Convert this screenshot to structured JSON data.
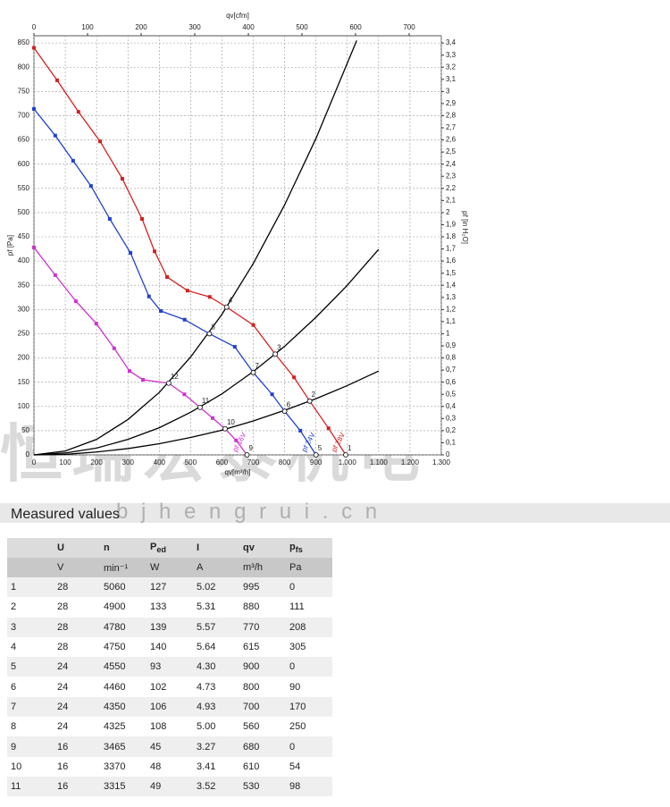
{
  "chart_data": {
    "type": "line",
    "x_label": "qv[m³/h]",
    "x2_label": "qv[cfm]",
    "y_label": "pf [Pa]",
    "y2_label": "pf [in H₂O]",
    "xlim": [
      0,
      1300
    ],
    "x2lim": [
      0,
      760
    ],
    "ylim": [
      0,
      865
    ],
    "y2lim": [
      0,
      3.46
    ],
    "grid": true,
    "xticks": [
      0,
      100,
      200,
      300,
      400,
      500,
      600,
      700,
      800,
      900,
      {
        "value": 1000,
        "label": "1.000"
      },
      {
        "value": 1100,
        "label": "1.100"
      },
      {
        "value": 1200,
        "label": "1.200"
      },
      {
        "value": 1300,
        "label": "1.300"
      }
    ],
    "x2ticks": [
      0,
      100,
      200,
      300,
      400,
      500,
      600,
      700
    ],
    "yticks": [
      0,
      50,
      100,
      150,
      200,
      250,
      300,
      350,
      400,
      450,
      500,
      550,
      600,
      650,
      700,
      750,
      800,
      850
    ],
    "y2ticks": [
      0,
      {
        "value": 0.1,
        "label": "0,1"
      },
      {
        "value": 0.2,
        "label": "0,2"
      },
      {
        "value": 0.3,
        "label": "0,3"
      },
      {
        "value": 0.4,
        "label": "0,4"
      },
      {
        "value": 0.5,
        "label": "0,5"
      },
      {
        "value": 0.6,
        "label": "0,6"
      },
      {
        "value": 0.7,
        "label": "0,7"
      },
      {
        "value": 0.8,
        "label": "0,8"
      },
      {
        "value": 0.9,
        "label": "0,9"
      },
      1,
      {
        "value": 1.1,
        "label": "1,1"
      },
      {
        "value": 1.2,
        "label": "1,2"
      },
      {
        "value": 1.3,
        "label": "1,3"
      },
      {
        "value": 1.4,
        "label": "1,4"
      },
      {
        "value": 1.5,
        "label": "1,5"
      },
      {
        "value": 1.6,
        "label": "1,6"
      },
      {
        "value": 1.7,
        "label": "1,7"
      },
      {
        "value": 1.8,
        "label": "1,8"
      },
      {
        "value": 1.9,
        "label": "1,9"
      },
      2,
      {
        "value": 2.1,
        "label": "2,1"
      },
      {
        "value": 2.2,
        "label": "2,2"
      },
      {
        "value": 2.3,
        "label": "2,3"
      },
      {
        "value": 2.4,
        "label": "2,4"
      },
      {
        "value": 2.5,
        "label": "2,5"
      },
      {
        "value": 2.6,
        "label": "2,6"
      },
      {
        "value": 2.7,
        "label": "2,7"
      },
      {
        "value": 2.8,
        "label": "2,8"
      },
      {
        "value": 2.9,
        "label": "2,9"
      },
      3,
      {
        "value": 3.1,
        "label": "3,1"
      },
      {
        "value": 3.2,
        "label": "3,2"
      },
      {
        "value": 3.3,
        "label": "3,3"
      },
      {
        "value": 3.4,
        "label": "3,4"
      }
    ],
    "series": [
      {
        "name": "pf 28V",
        "color": "#d42020",
        "markers": true,
        "x": [
          0,
          74,
          142,
          211,
          282,
          345,
          385,
          425,
          490,
          561,
          615,
          700,
          770,
          830,
          880,
          940,
          995
        ],
        "values": [
          840,
          773,
          708,
          647,
          570,
          487,
          420,
          367,
          339,
          326,
          305,
          268,
          208,
          160,
          111,
          55,
          0
        ]
      },
      {
        "name": "pf 24V",
        "color": "#2040d0",
        "markers": true,
        "x": [
          0,
          68,
          125,
          182,
          242,
          308,
          367,
          405,
          481,
          560,
          641,
          700,
          760,
          800,
          850,
          900
        ],
        "values": [
          714,
          659,
          607,
          555,
          487,
          417,
          327,
          297,
          279,
          250,
          223,
          170,
          125,
          90,
          50,
          0
        ]
      },
      {
        "name": "pf 16V",
        "color": "#d030d0",
        "markers": true,
        "x": [
          0,
          68,
          134,
          199,
          256,
          305,
          348,
          430,
          480,
          530,
          570,
          610,
          645,
          680
        ],
        "values": [
          428,
          371,
          317,
          271,
          220,
          173,
          155,
          148,
          125,
          98,
          76,
          54,
          30,
          0
        ]
      },
      {
        "color": "#000000",
        "markers": false,
        "x": [
          0,
          100,
          200,
          300,
          400,
          500,
          600,
          700,
          800,
          900,
          1030
        ],
        "values": [
          0,
          8,
          32,
          73,
          129,
          202,
          290,
          395,
          516,
          653,
          855
        ]
      },
      {
        "color": "#000000",
        "markers": false,
        "x": [
          0,
          100,
          200,
          300,
          400,
          500,
          600,
          700,
          800,
          900,
          1000,
          1100
        ],
        "values": [
          0,
          4,
          14,
          32,
          56,
          88,
          126,
          172,
          224,
          284,
          350,
          424
        ]
      },
      {
        "color": "#000000",
        "markers": false,
        "x": [
          0,
          100,
          200,
          300,
          400,
          500,
          600,
          700,
          800,
          900,
          1000,
          1100
        ],
        "values": [
          0,
          1,
          6,
          13,
          23,
          36,
          51,
          70,
          92,
          116,
          143,
          173
        ]
      }
    ],
    "annotations": [
      {
        "label": "1",
        "x": 995,
        "y": 0
      },
      {
        "label": "2",
        "x": 880,
        "y": 111
      },
      {
        "label": "3",
        "x": 770,
        "y": 208
      },
      {
        "label": "4",
        "x": 615,
        "y": 305
      },
      {
        "label": "5",
        "x": 900,
        "y": 0
      },
      {
        "label": "6",
        "x": 800,
        "y": 90
      },
      {
        "label": "7",
        "x": 700,
        "y": 170
      },
      {
        "label": "8",
        "x": 560,
        "y": 250
      },
      {
        "label": "9",
        "x": 680,
        "y": 0
      },
      {
        "label": "10",
        "x": 610,
        "y": 54
      },
      {
        "label": "11",
        "x": 530,
        "y": 98
      },
      {
        "label": "12",
        "x": 430,
        "y": 148
      }
    ]
  },
  "watermark": {
    "text": "恒瑞宏泰机电",
    "url": "b j h e n g r u i . c n"
  },
  "table": {
    "title": "Measured values",
    "header": [
      "U",
      "n",
      {
        "text": "P",
        "sub": "ed"
      },
      "I",
      "qv",
      {
        "text": "p",
        "sub": "fs"
      }
    ],
    "units": [
      "V",
      "min⁻¹",
      "W",
      "A",
      "m³/h",
      "Pa"
    ],
    "rows": [
      [
        "1",
        "28",
        "5060",
        "127",
        "5.02",
        "995",
        "0"
      ],
      [
        "2",
        "28",
        "4900",
        "133",
        "5.31",
        "880",
        "111"
      ],
      [
        "3",
        "28",
        "4780",
        "139",
        "5.57",
        "770",
        "208"
      ],
      [
        "4",
        "28",
        "4750",
        "140",
        "5.64",
        "615",
        "305"
      ],
      [
        "5",
        "24",
        "4550",
        "93",
        "4.30",
        "900",
        "0"
      ],
      [
        "6",
        "24",
        "4460",
        "102",
        "4.73",
        "800",
        "90"
      ],
      [
        "7",
        "24",
        "4350",
        "106",
        "4.93",
        "700",
        "170"
      ],
      [
        "8",
        "24",
        "4325",
        "108",
        "5.00",
        "560",
        "250"
      ],
      [
        "9",
        "16",
        "3465",
        "45",
        "3.27",
        "680",
        "0"
      ],
      [
        "10",
        "16",
        "3370",
        "48",
        "3.41",
        "610",
        "54"
      ],
      [
        "11",
        "16",
        "3315",
        "49",
        "3.52",
        "530",
        "98"
      ]
    ]
  }
}
